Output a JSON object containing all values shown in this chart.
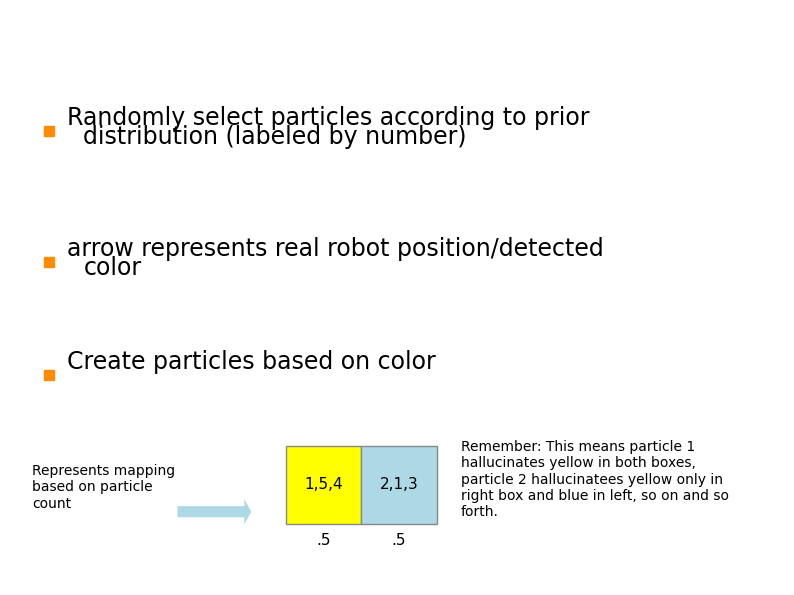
{
  "bg_color": "#ffffff",
  "bullet_color": "#FF8C00",
  "bullet1_line1": "Randomly select particles according to prior",
  "bullet1_line2": "distribution (labeled by number)",
  "bullet2_line1": "arrow represents real robot position/detected",
  "bullet2_line2": "color",
  "bullet3": "Create particles based on color",
  "text_color": "#000000",
  "text_size": 17,
  "small_text_size": 10,
  "box1_color": "#FFFF00",
  "box2_color": "#ADD8E6",
  "box1_label": "1,5,4",
  "box2_label": "2,1,3",
  "box_val1": ".5",
  "box_val2": ".5",
  "arrow_color": "#ADD8E6",
  "mapping_text": "Represents mapping\nbased on particle\ncount",
  "remember_text": "Remember: This means particle 1\nhallucinates yellow in both boxes,\nparticle 2 hallucinatees yellow only in\nright box and blue in left, so on and so\nforth."
}
